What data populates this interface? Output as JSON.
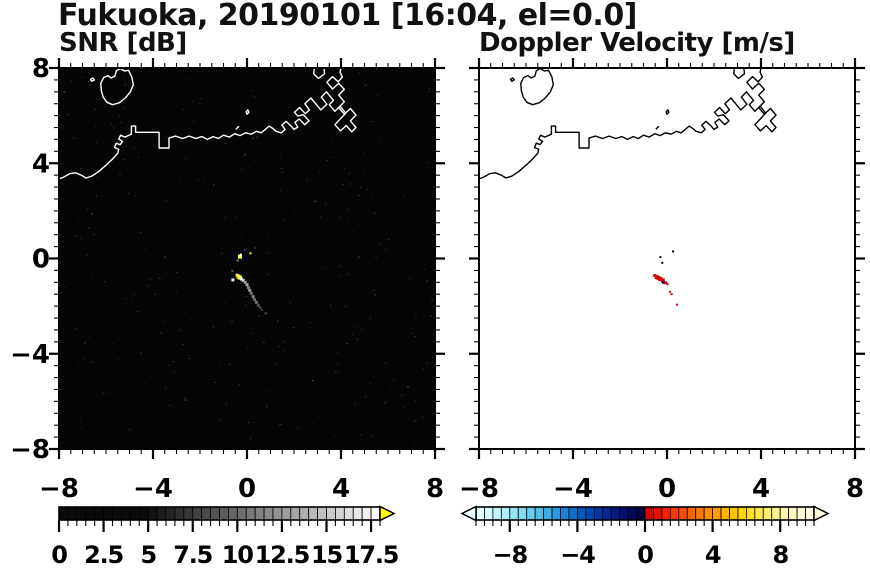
{
  "title": "Fukuoka, 20190101 [16:04, el=0.0]",
  "chart_data": {
    "type": "heatmap",
    "xlim": [
      -8,
      8
    ],
    "ylim": [
      -8,
      8
    ],
    "x_tick_values": [
      -8,
      -4,
      0,
      4,
      8
    ],
    "x_tick_labels": [
      "−8",
      "−4",
      "0",
      "4",
      "8"
    ],
    "y_tick_values": [
      8,
      4,
      0,
      -4,
      -8
    ],
    "y_tick_labels": [
      "8",
      "4",
      "0",
      "−4",
      "−8"
    ],
    "minor_tick_step": 0.5,
    "panels": [
      {
        "id": "snr",
        "label": "SNR [dB]",
        "background": "#050505",
        "coast_color": "#ffffff",
        "echoes": [
          {
            "x": -0.3,
            "y": 0.08,
            "c": "#ffff33",
            "s": 4
          },
          {
            "x": -0.26,
            "y": 0.16,
            "c": "#ffffff",
            "s": 2
          },
          {
            "x": 0.15,
            "y": 0.22,
            "c": "#ffff00",
            "s": 2
          },
          {
            "x": -0.4,
            "y": -0.08,
            "c": "#888888",
            "s": 2
          },
          {
            "x": -0.62,
            "y": -0.52,
            "c": "#555555",
            "s": 2
          },
          {
            "x": -0.42,
            "y": -0.7,
            "c": "#dddddd",
            "s": 3
          },
          {
            "x": -0.36,
            "y": -0.76,
            "c": "#ffff00",
            "s": 4
          },
          {
            "x": -0.3,
            "y": -0.8,
            "c": "#ffff33",
            "s": 4
          },
          {
            "x": -0.24,
            "y": -0.86,
            "c": "#ffffff",
            "s": 3
          },
          {
            "x": -0.16,
            "y": -0.92,
            "c": "#cccccc",
            "s": 3
          },
          {
            "x": -0.6,
            "y": -0.9,
            "c": "#eeeeee",
            "s": 3
          },
          {
            "x": -0.08,
            "y": -1.0,
            "c": "#999999",
            "s": 3
          },
          {
            "x": 0.0,
            "y": -1.1,
            "c": "#aaaaaa",
            "s": 3
          },
          {
            "x": 0.06,
            "y": -1.22,
            "c": "#888888",
            "s": 3
          },
          {
            "x": 0.12,
            "y": -1.34,
            "c": "#999999",
            "s": 3
          },
          {
            "x": 0.18,
            "y": -1.46,
            "c": "#777777",
            "s": 3
          },
          {
            "x": 0.26,
            "y": -1.6,
            "c": "#888888",
            "s": 3
          },
          {
            "x": 0.32,
            "y": -1.72,
            "c": "#666666",
            "s": 3
          },
          {
            "x": 0.4,
            "y": -1.84,
            "c": "#777777",
            "s": 3
          },
          {
            "x": 0.48,
            "y": -1.96,
            "c": "#555555",
            "s": 3
          },
          {
            "x": 0.56,
            "y": -2.06,
            "c": "#666666",
            "s": 2
          },
          {
            "x": 0.64,
            "y": -2.16,
            "c": "#444444",
            "s": 2
          },
          {
            "x": 0.8,
            "y": -2.3,
            "c": "#555555",
            "s": 2
          },
          {
            "x": -0.1,
            "y": 0.35,
            "c": "#444444",
            "s": 2
          },
          {
            "x": 0.35,
            "y": 0.45,
            "c": "#333333",
            "s": 2
          }
        ],
        "colorbar": {
          "min": 0,
          "max": 18,
          "block_step": 0.5,
          "label_values": [
            0,
            2.5,
            5,
            7.5,
            10,
            12.5,
            15,
            17.5
          ],
          "labels": [
            "0",
            "2.5",
            "5",
            "7.5",
            "10",
            "12.5",
            "15",
            "17.5"
          ],
          "colors": [
            "#0a0a0a",
            "#0a0a0a",
            "#0a0a0a",
            "#0a0a0a",
            "#0a0a0a",
            "#0a0a0a",
            "#0a0a0a",
            "#0a0a0a",
            "#0a0a0a",
            "#0a0a0a",
            "#121212",
            "#1b1b1b",
            "#252525",
            "#2e2e2e",
            "#373737",
            "#404040",
            "#4a4a4a",
            "#535353",
            "#5c5c5c",
            "#666666",
            "#6f6f6f",
            "#787878",
            "#818181",
            "#8b8b8b",
            "#949494",
            "#9d9d9d",
            "#a6a6a6",
            "#b0b0b0",
            "#b9b9b9",
            "#c2c2c2",
            "#cccccc",
            "#d5d5d5",
            "#dedede",
            "#e7e7e7",
            "#f1f1f1",
            "#fafafa"
          ],
          "arrow_left": null,
          "arrow_right": "#ffff00"
        }
      },
      {
        "id": "doppler",
        "label": "Doppler Velocity [m/s]",
        "background": "#ffffff",
        "coast_color": "#000000",
        "echoes": [
          {
            "x": 0.26,
            "y": 0.3,
            "c": "#000000",
            "s": 2
          },
          {
            "x": -0.28,
            "y": 0.06,
            "c": "#000000",
            "s": 2
          },
          {
            "x": -0.2,
            "y": -0.18,
            "c": "#000000",
            "s": 2
          },
          {
            "x": -0.52,
            "y": -0.72,
            "c": "#cc0000",
            "s": 3
          },
          {
            "x": -0.44,
            "y": -0.78,
            "c": "#ee0000",
            "s": 4
          },
          {
            "x": -0.36,
            "y": -0.82,
            "c": "#dd0000",
            "s": 4
          },
          {
            "x": -0.28,
            "y": -0.86,
            "c": "#cc0000",
            "s": 4
          },
          {
            "x": -0.18,
            "y": -0.92,
            "c": "#dd0000",
            "s": 4
          },
          {
            "x": -0.15,
            "y": -1.0,
            "c": "#001a66",
            "s": 3
          },
          {
            "x": -0.06,
            "y": -1.02,
            "c": "#cc0000",
            "s": 3
          },
          {
            "x": 0.02,
            "y": -1.08,
            "c": "#bb0000",
            "s": 2
          },
          {
            "x": 0.13,
            "y": -1.4,
            "c": "#cc0000",
            "s": 2
          },
          {
            "x": 0.2,
            "y": -1.5,
            "c": "#bb0000",
            "s": 2
          },
          {
            "x": 0.42,
            "y": -1.94,
            "c": "#cc0000",
            "s": 2
          }
        ],
        "colorbar": {
          "min": -10,
          "max": 10,
          "block_step": 0.5,
          "label_values": [
            -8,
            -4,
            0,
            4,
            8
          ],
          "labels": [
            "−8",
            "−4",
            "0",
            "4",
            "8"
          ],
          "colors": [
            "#e9feff",
            "#d6fbfe",
            "#c2f6fc",
            "#adeffa",
            "#97e6f7",
            "#80daf3",
            "#69cdef",
            "#52bdea",
            "#3cace4",
            "#2899dd",
            "#1784d4",
            "#0a6fca",
            "#0659be",
            "#0447b2",
            "#0336a4",
            "#022795",
            "#021b84",
            "#011170",
            "#010a5c",
            "#010647",
            "#d90000",
            "#e51000",
            "#ee2500",
            "#f43a00",
            "#f94f00",
            "#fc6400",
            "#fe7900",
            "#ff8d00",
            "#ffa000",
            "#ffb300",
            "#ffc400",
            "#ffd300",
            "#ffdf1d",
            "#ffe747",
            "#ffed6e",
            "#fff28f",
            "#fff5ab",
            "#fff8c0",
            "#fffad0",
            "#fcf9dc"
          ],
          "arrow_left": "#e9feff",
          "arrow_right": "#fcf9dc"
        }
      }
    ],
    "coastlines": [
      {
        "name": "mainland-coast",
        "closed": false,
        "points": [
          [
            -8.1,
            3.3
          ],
          [
            -7.8,
            3.42
          ],
          [
            -7.55,
            3.56
          ],
          [
            -7.3,
            3.6
          ],
          [
            -7.05,
            3.5
          ],
          [
            -6.85,
            3.38
          ],
          [
            -6.6,
            3.46
          ],
          [
            -6.3,
            3.66
          ],
          [
            -6.0,
            3.92
          ],
          [
            -5.72,
            4.18
          ],
          [
            -5.5,
            4.42
          ],
          [
            -5.46,
            4.58
          ],
          [
            -5.64,
            4.66
          ],
          [
            -5.56,
            4.84
          ],
          [
            -5.4,
            4.78
          ],
          [
            -5.3,
            4.92
          ],
          [
            -5.46,
            5.02
          ],
          [
            -5.38,
            5.18
          ],
          [
            -5.2,
            5.1
          ],
          [
            -4.92,
            5.22
          ],
          [
            -4.92,
            5.56
          ],
          [
            -4.74,
            5.56
          ],
          [
            -4.74,
            5.3
          ],
          [
            -3.74,
            5.3
          ],
          [
            -3.74,
            4.64
          ],
          [
            -3.32,
            4.64
          ],
          [
            -3.32,
            5.06
          ],
          [
            -3.04,
            5.14
          ],
          [
            -2.74,
            5.04
          ],
          [
            -2.46,
            5.14
          ],
          [
            -2.18,
            5.04
          ],
          [
            -1.92,
            5.12
          ],
          [
            -1.68,
            5.0
          ],
          [
            -1.44,
            5.12
          ],
          [
            -1.22,
            5.04
          ],
          [
            -1.0,
            5.18
          ],
          [
            -0.76,
            5.1
          ],
          [
            -0.52,
            5.24
          ],
          [
            -0.3,
            5.16
          ],
          [
            -0.06,
            5.28
          ],
          [
            0.18,
            5.22
          ],
          [
            0.4,
            5.34
          ],
          [
            0.6,
            5.28
          ],
          [
            0.78,
            5.42
          ],
          [
            0.94,
            5.56
          ],
          [
            1.1,
            5.46
          ],
          [
            1.24,
            5.34
          ],
          [
            1.46,
            5.28
          ],
          [
            1.62,
            5.42
          ],
          [
            1.48,
            5.6
          ],
          [
            1.66,
            5.76
          ],
          [
            1.86,
            5.58
          ],
          [
            2.0,
            5.42
          ],
          [
            2.16,
            5.52
          ],
          [
            2.04,
            5.72
          ],
          [
            2.22,
            5.86
          ],
          [
            2.46,
            5.62
          ],
          [
            2.64,
            5.78
          ],
          [
            2.4,
            6.04
          ],
          [
            2.16,
            5.98
          ],
          [
            2.02,
            6.14
          ],
          [
            2.24,
            6.34
          ],
          [
            2.48,
            6.08
          ],
          [
            2.66,
            6.24
          ],
          [
            2.46,
            6.5
          ],
          [
            2.72,
            6.74
          ],
          [
            3.14,
            6.24
          ],
          [
            3.4,
            6.48
          ],
          [
            3.16,
            6.78
          ],
          [
            3.38,
            7.0
          ],
          [
            3.68,
            6.64
          ],
          [
            3.5,
            6.46
          ],
          [
            3.74,
            6.18
          ],
          [
            3.96,
            6.4
          ],
          [
            4.2,
            6.1
          ],
          [
            3.74,
            5.62
          ],
          [
            3.98,
            5.36
          ],
          [
            4.22,
            5.58
          ],
          [
            4.46,
            5.32
          ],
          [
            4.64,
            5.5
          ],
          [
            4.4,
            5.78
          ],
          [
            4.64,
            6.02
          ],
          [
            4.4,
            6.3
          ],
          [
            4.14,
            6.06
          ],
          [
            3.9,
            6.34
          ],
          [
            4.14,
            6.58
          ],
          [
            3.9,
            6.86
          ],
          [
            4.14,
            7.1
          ],
          [
            3.9,
            7.36
          ],
          [
            3.64,
            7.12
          ],
          [
            3.4,
            7.4
          ],
          [
            3.64,
            7.64
          ],
          [
            3.88,
            7.42
          ],
          [
            4.06,
            7.62
          ],
          [
            3.96,
            7.82
          ],
          [
            4.02,
            8.1
          ]
        ]
      },
      {
        "name": "harbor-top-piece",
        "closed": false,
        "points": [
          [
            2.88,
            8.1
          ],
          [
            2.84,
            7.76
          ],
          [
            3.04,
            7.56
          ],
          [
            3.3,
            7.76
          ],
          [
            3.26,
            8.1
          ]
        ]
      },
      {
        "name": "island",
        "closed": true,
        "points": [
          [
            -5.04,
            7.9
          ],
          [
            -4.9,
            7.62
          ],
          [
            -4.84,
            7.3
          ],
          [
            -4.96,
            7.0
          ],
          [
            -5.18,
            6.74
          ],
          [
            -5.44,
            6.54
          ],
          [
            -5.72,
            6.46
          ],
          [
            -5.96,
            6.56
          ],
          [
            -6.12,
            6.78
          ],
          [
            -6.2,
            7.06
          ],
          [
            -6.22,
            7.36
          ],
          [
            -6.1,
            7.6
          ],
          [
            -5.92,
            7.68
          ],
          [
            -5.78,
            7.58
          ],
          [
            -5.62,
            7.66
          ],
          [
            -5.56,
            7.88
          ],
          [
            -5.4,
            7.98
          ],
          [
            -5.22,
            7.88
          ]
        ]
      },
      {
        "name": "islet-west",
        "closed": true,
        "points": [
          [
            -6.6,
            7.44
          ],
          [
            -6.5,
            7.5
          ],
          [
            -6.56,
            7.58
          ],
          [
            -6.66,
            7.52
          ]
        ]
      },
      {
        "name": "islet-center",
        "closed": true,
        "points": [
          [
            0.0,
            6.06
          ],
          [
            0.08,
            6.14
          ],
          [
            0.04,
            6.24
          ],
          [
            -0.04,
            6.16
          ]
        ]
      },
      {
        "name": "islet-dash",
        "closed": false,
        "points": [
          [
            -0.46,
            5.44
          ],
          [
            -0.36,
            5.54
          ]
        ]
      }
    ]
  }
}
